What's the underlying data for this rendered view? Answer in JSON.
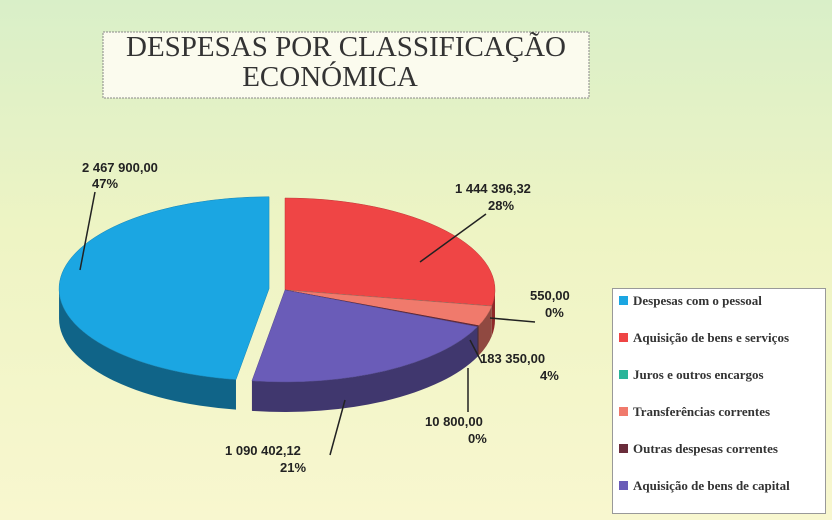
{
  "chart_data": {
    "type": "pie",
    "title": [
      "DESPESAS POR CLASSIFICAÇÃO",
      "ECONÓMICA"
    ],
    "categories": [
      "Despesas com o pessoal",
      "Aquisição de bens e serviços",
      "Juros e outros encargos",
      "Transferências correntes",
      "Outras despesas correntes",
      "Aquisição de bens de capital"
    ],
    "values": [
      2467900.0,
      1444396.32,
      550.0,
      183350.0,
      10800.0,
      1090402.12
    ],
    "value_labels": [
      "2 467 900,00",
      "1 444 396,32",
      "550,00",
      "183 350,00",
      "10 800,00",
      "1 090 402,12"
    ],
    "percent_labels": [
      "47%",
      "28%",
      "0%",
      "4%",
      "0%",
      "21%"
    ],
    "colors": [
      "#1ba6e2",
      "#ef4545",
      "#2bb59a",
      "#f07a6c",
      "#6a2c3b",
      "#6a5cb8"
    ],
    "three_d": true,
    "legend": "right"
  }
}
